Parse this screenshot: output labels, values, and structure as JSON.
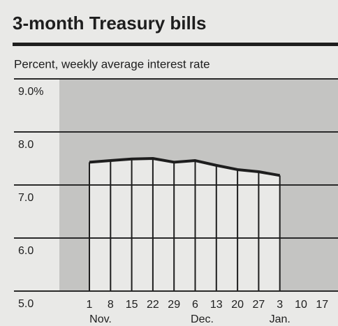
{
  "chart_data": {
    "type": "line",
    "title": "3-month Treasury bills",
    "subtitle": "Percent, weekly average interest rate",
    "categories": [
      "1",
      "8",
      "15",
      "22",
      "29",
      "6",
      "13",
      "20",
      "27",
      "3",
      "10",
      "17"
    ],
    "months": [
      "Nov.",
      "Dec.",
      "Jan."
    ],
    "values": [
      7.43,
      7.46,
      7.49,
      7.5,
      7.43,
      7.46,
      7.37,
      7.29,
      7.25,
      7.18,
      null,
      null
    ],
    "color": "#1e1e1e",
    "ylim": [
      5,
      9
    ],
    "yticks": [
      {
        "value": 9,
        "label": "9.0%"
      },
      {
        "value": 8,
        "label": "8.0"
      },
      {
        "value": 7,
        "label": "7.0"
      },
      {
        "value": 6,
        "label": "6.0"
      },
      {
        "value": 5,
        "label": "5.0"
      }
    ],
    "grid": true
  }
}
